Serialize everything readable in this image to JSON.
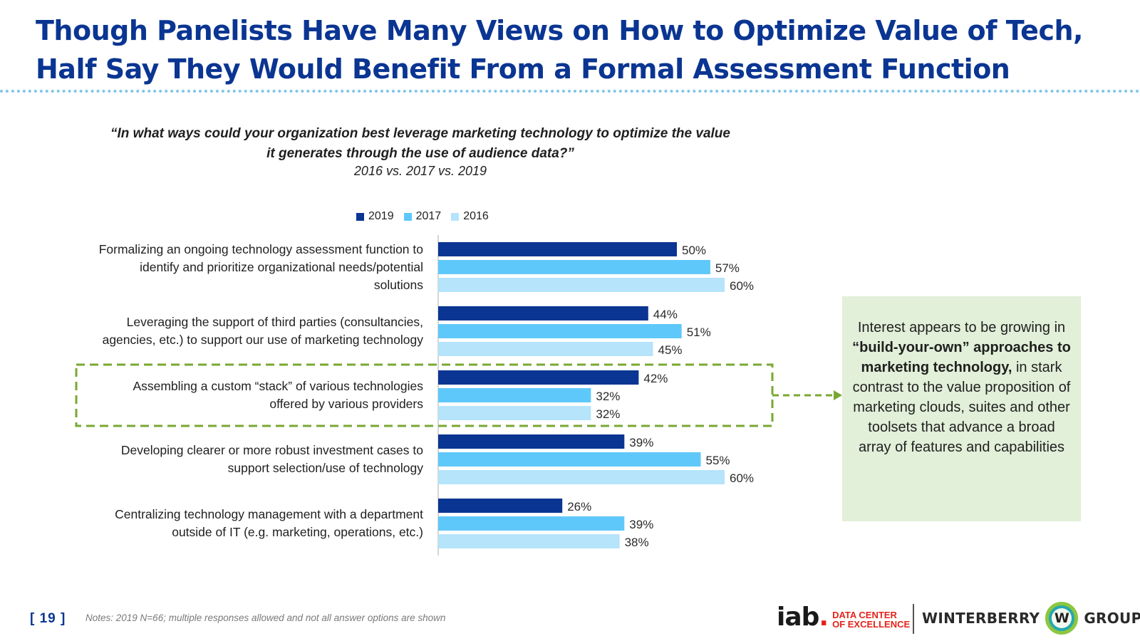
{
  "title": {
    "line1": "Though Panelists Have Many Views on How to Optimize Value of Tech,",
    "line2": "Half Say They Would Benefit From a Formal Assessment Function"
  },
  "question": {
    "line1": "“In what ways could your organization best leverage marketing technology to optimize the value",
    "line2": "it generates through the use of audience data?”",
    "subtitle": "2016 vs. 2017 vs. 2019"
  },
  "callout": {
    "pre": "Interest appears to be growing in ",
    "bold": "“build-your-own” approaches to marketing technology,",
    "post": " in stark contrast to the value proposition of marketing clouds, suites and other toolsets that advance a broad array of features and capabilities"
  },
  "footer": {
    "page": "[ 19 ]",
    "notes": "Notes: 2019 N=66; multiple responses allowed and not all answer options are shown",
    "logo_iab": "iab",
    "logo_iab_dot": ".",
    "logo_iab_line1": "DATA CENTER",
    "logo_iab_line2": "OF EXCELLENCE",
    "logo_winterberry": "WINTERBERRY",
    "logo_w": "W",
    "logo_group": "GROUP"
  },
  "colors": {
    "title": "#0a3592",
    "s2019": "#0a3592",
    "s2017": "#5fc8fa",
    "s2016": "#b5e4fb",
    "highlight_dash": "#78a832",
    "callout_bg": "#e2efd9"
  },
  "chart_data": {
    "type": "bar",
    "orientation": "horizontal",
    "categories": [
      "Formalizing an ongoing technology assessment function to identify and prioritize organizational needs/potential solutions",
      "Leveraging the support of third parties (consultancies, agencies, etc.) to support our use of marketing technology",
      "Assembling a custom “stack” of various technologies offered by various providers",
      "Developing clearer or more robust investment cases to support selection/use of technology",
      "Centralizing technology management with a department outside of IT (e.g. marketing, operations, etc.)"
    ],
    "category_lines": [
      [
        "Formalizing an ongoing technology assessment function to",
        "identify and prioritize organizational needs/potential",
        "solutions"
      ],
      [
        "Leveraging the support of third parties (consultancies,",
        "agencies, etc.) to support our use of marketing technology"
      ],
      [
        "Assembling a custom “stack” of various technologies",
        "offered by various providers"
      ],
      [
        "Developing clearer or more robust investment cases to",
        "support selection/use of technology"
      ],
      [
        "Centralizing technology management with a department",
        "outside of IT (e.g. marketing, operations, etc.)"
      ]
    ],
    "series": [
      {
        "name": "2019",
        "color": "#0a3592",
        "values": [
          50,
          44,
          42,
          39,
          26
        ]
      },
      {
        "name": "2017",
        "color": "#5fc8fa",
        "values": [
          57,
          51,
          32,
          55,
          39
        ]
      },
      {
        "name": "2016",
        "color": "#b5e4fb",
        "values": [
          60,
          45,
          32,
          60,
          38
        ]
      }
    ],
    "value_suffix": "%",
    "xlim": [
      0,
      100
    ],
    "highlighted_category_index": 2,
    "legend_position": "top",
    "grid": false
  }
}
